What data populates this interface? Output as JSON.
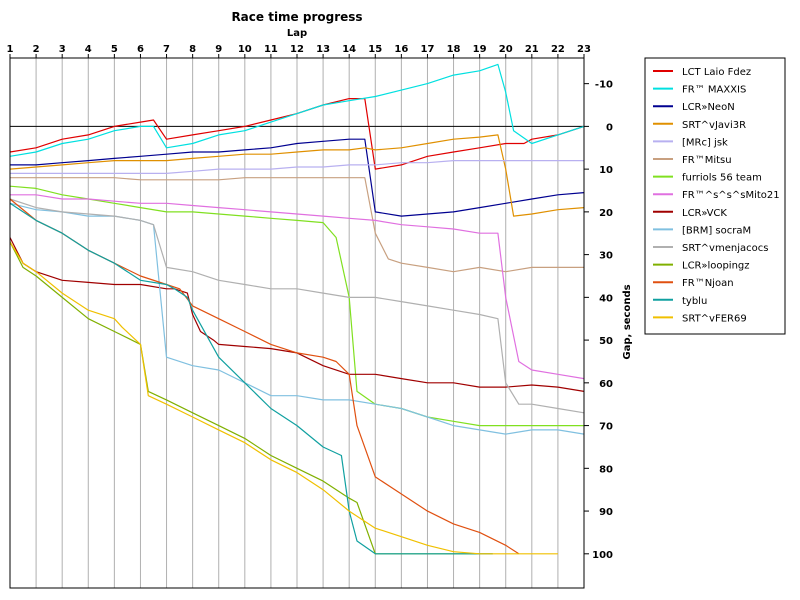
{
  "chart_data": {
    "type": "line",
    "title": "Race time progress",
    "xlabel": "Lap",
    "ylabel": "Gap, seconds",
    "x_ticks": [
      1,
      2,
      3,
      4,
      5,
      6,
      7,
      8,
      9,
      10,
      11,
      12,
      13,
      14,
      15,
      16,
      17,
      18,
      19,
      20,
      21,
      22,
      23
    ],
    "y_ticks": [
      -10,
      0,
      10,
      20,
      30,
      40,
      50,
      60,
      70,
      80,
      90,
      100
    ],
    "y_tick_labels": [
      "-10",
      "0",
      "10",
      "20",
      "30",
      "40",
      "50",
      "60",
      "70",
      "80",
      "90",
      "100"
    ],
    "xlim": [
      1,
      23
    ],
    "ylim": [
      -16,
      108
    ],
    "y_inverted": true,
    "legend_position": "right",
    "series": [
      {
        "name": "LCT Laio Fdez",
        "color": "#e00000",
        "x": [
          1,
          2,
          3,
          4,
          5,
          6,
          6.5,
          7,
          8,
          9,
          10,
          11,
          12,
          13,
          14,
          14.6,
          15,
          16,
          17,
          18,
          19,
          20,
          20.7,
          21,
          22,
          23
        ],
        "y": [
          6,
          5,
          3,
          2,
          0,
          -1,
          -1.5,
          3,
          2,
          1,
          0,
          -1.5,
          -3,
          -5,
          -6.5,
          -6.5,
          10,
          9,
          7,
          6,
          5,
          4,
          4,
          3,
          2,
          0
        ]
      },
      {
        "name": "FR™ MAXXIS",
        "color": "#00e0e0",
        "x": [
          1,
          2,
          3,
          4,
          5,
          6,
          6.5,
          7,
          8,
          9,
          10,
          11,
          12,
          13,
          14,
          15,
          16,
          17,
          18,
          19,
          19.7,
          20,
          20.3,
          21,
          22,
          23
        ],
        "y": [
          7,
          6,
          4,
          3,
          1,
          0,
          0,
          5,
          4,
          2,
          1,
          -1,
          -3,
          -5,
          -6,
          -7,
          -8.5,
          -10,
          -12,
          -13,
          -14.5,
          -8,
          1,
          4,
          2,
          0
        ]
      },
      {
        "name": "LCR»NeoN",
        "color": "#000090",
        "x": [
          1,
          2,
          3,
          4,
          5,
          6,
          7,
          8,
          9,
          10,
          11,
          12,
          13,
          14,
          14.6,
          15,
          16,
          17,
          18,
          19,
          20,
          21,
          22,
          23
        ],
        "y": [
          9,
          9,
          8.5,
          8,
          7.5,
          7,
          6.5,
          6,
          6,
          5.5,
          5,
          4,
          3.5,
          3,
          3,
          20,
          21,
          20.5,
          20,
          19,
          18,
          17,
          16,
          15.5
        ]
      },
      {
        "name": "SRT^vJavi3R",
        "color": "#e09000",
        "x": [
          1,
          2,
          3,
          4,
          5,
          6,
          7,
          8,
          9,
          10,
          11,
          12,
          13,
          14,
          14.6,
          15,
          16,
          17,
          18,
          19,
          19.7,
          20,
          20.3,
          21,
          22,
          23
        ],
        "y": [
          10,
          9.5,
          9,
          8.5,
          8,
          8,
          8,
          7.5,
          7,
          6.5,
          6.5,
          6,
          5.5,
          5.5,
          5,
          5.5,
          5,
          4,
          3,
          2.5,
          2,
          10,
          21,
          20.5,
          19.5,
          19
        ]
      },
      {
        "name": "[MRc] jsk",
        "color": "#b8b0f0",
        "x": [
          1,
          2,
          3,
          4,
          5,
          6,
          7,
          8,
          9,
          10,
          11,
          12,
          13,
          14,
          15,
          16,
          17,
          18,
          19,
          20,
          21,
          22,
          23
        ],
        "y": [
          11,
          11,
          11,
          11,
          11,
          11,
          11,
          10.5,
          10,
          10,
          10,
          9.5,
          9.5,
          9,
          9,
          8.5,
          8.5,
          8,
          8,
          8,
          8,
          8,
          8
        ]
      },
      {
        "name": "FR™Mitsu",
        "color": "#c8a080",
        "x": [
          1,
          2,
          3,
          4,
          5,
          6,
          7,
          8,
          9,
          10,
          11,
          12,
          13,
          14,
          14.6,
          15,
          15.5,
          16,
          17,
          18,
          19,
          20,
          21,
          22,
          23
        ],
        "y": [
          12,
          12,
          12,
          12,
          12,
          12.5,
          12.5,
          12.5,
          12.5,
          12,
          12,
          12,
          12,
          12,
          12,
          25,
          31,
          32,
          33,
          34,
          33,
          34,
          33,
          33,
          33
        ]
      },
      {
        "name": "furriols 56 team",
        "color": "#80e020",
        "x": [
          1,
          2,
          3,
          4,
          5,
          6,
          7,
          8,
          9,
          10,
          11,
          12,
          13,
          13.5,
          14,
          14.3,
          15,
          16,
          17,
          18,
          19,
          20,
          21,
          22,
          23
        ],
        "y": [
          14,
          14.5,
          16,
          17,
          18,
          19,
          20,
          20,
          20.5,
          21,
          21.5,
          22,
          22.5,
          26,
          40,
          62,
          65,
          66,
          68,
          69,
          70,
          70,
          70,
          70,
          70
        ]
      },
      {
        "name": "FR™^s^s^sMito21",
        "color": "#e070e0",
        "x": [
          1,
          2,
          3,
          4,
          5,
          6,
          7,
          8,
          9,
          10,
          11,
          12,
          13,
          14,
          15,
          16,
          17,
          18,
          19,
          19.7,
          20,
          20.5,
          21,
          22,
          23
        ],
        "y": [
          16,
          16,
          17,
          17,
          17.5,
          18,
          18,
          18.5,
          19,
          19.5,
          20,
          20.5,
          21,
          21.5,
          22,
          23,
          23.5,
          24,
          25,
          25,
          40,
          55,
          57,
          58,
          59
        ]
      },
      {
        "name": "LCR»VCK",
        "color": "#a00000",
        "x": [
          1,
          1.5,
          2,
          3,
          4,
          5,
          6,
          7,
          7.3,
          7.8,
          8,
          8.3,
          8.8,
          9,
          10,
          11,
          12,
          13,
          14,
          15,
          16,
          17,
          18,
          19,
          20,
          21,
          22,
          23
        ],
        "y": [
          26,
          32,
          34,
          36,
          36.5,
          37,
          37,
          38,
          38,
          39,
          44,
          48,
          50,
          51,
          51.5,
          52,
          53,
          56,
          58,
          58,
          59,
          60,
          60,
          61,
          61,
          60.5,
          61,
          62
        ]
      },
      {
        "name": "[BRM] socraM",
        "color": "#80c0e0",
        "x": [
          1,
          2,
          3,
          4,
          5,
          6,
          6.5,
          7,
          8,
          9,
          10,
          11,
          12,
          13,
          14,
          15,
          16,
          17,
          18,
          19,
          20,
          21,
          22,
          23
        ],
        "y": [
          18,
          19.5,
          20,
          21,
          21,
          22,
          23,
          54,
          56,
          57,
          60,
          63,
          63,
          64,
          64,
          65,
          66,
          68,
          70,
          71,
          72,
          71,
          71,
          72
        ]
      },
      {
        "name": "SRT^vmenjacocs",
        "color": "#b0b0b0",
        "x": [
          1,
          2,
          3,
          4,
          5,
          6,
          6.5,
          7,
          8,
          9,
          10,
          11,
          12,
          13,
          14,
          15,
          16,
          17,
          18,
          19,
          19.7,
          20,
          20.5,
          21,
          22,
          23
        ],
        "y": [
          17,
          19,
          20,
          20.5,
          21,
          22,
          23,
          33,
          34,
          36,
          37,
          38,
          38,
          39,
          40,
          40,
          41,
          42,
          43,
          44,
          45,
          60,
          65,
          65,
          66,
          67
        ]
      },
      {
        "name": "LCR»loopingz",
        "color": "#80b000",
        "x": [
          1,
          1.5,
          2,
          3,
          4,
          5,
          6,
          6.3,
          7,
          8,
          9,
          10,
          11,
          12,
          13,
          14,
          14.3,
          15,
          16,
          17,
          18,
          19,
          19.5
        ],
        "y": [
          27,
          33,
          35,
          40,
          45,
          48,
          51,
          62,
          64,
          67,
          70,
          73,
          77,
          80,
          83,
          87,
          88,
          100,
          100,
          100,
          100,
          100,
          100
        ]
      },
      {
        "name": "FR™Njoan",
        "color": "#e05010",
        "x": [
          1,
          2,
          3,
          4,
          5,
          6,
          7,
          7.5,
          8,
          9,
          10,
          11,
          12,
          13,
          13.5,
          14,
          14.3,
          15,
          16,
          17,
          18,
          19,
          20,
          20.5
        ],
        "y": [
          17,
          22,
          25,
          29,
          32,
          35,
          37,
          38,
          42,
          45,
          48,
          51,
          53,
          54,
          55,
          58,
          70,
          82,
          86,
          90,
          93,
          95,
          98,
          100
        ]
      },
      {
        "name": "tyblu",
        "color": "#10a0a0",
        "x": [
          1,
          2,
          3,
          4,
          5,
          6,
          7,
          7.3,
          7.8,
          8,
          9,
          10,
          11,
          12,
          13,
          13.7,
          14,
          14.3,
          15,
          16,
          17,
          18,
          19,
          19.5
        ],
        "y": [
          18,
          22,
          25,
          29,
          32,
          36,
          37,
          38,
          40,
          43,
          54,
          60,
          66,
          70,
          75,
          77,
          90,
          97,
          100,
          100,
          100,
          100,
          100,
          100
        ]
      },
      {
        "name": "SRT^vFER69",
        "color": "#f0c000",
        "x": [
          1,
          1.5,
          2,
          3,
          4,
          5,
          5.3,
          6,
          6.3,
          7,
          8,
          9,
          10,
          11,
          12,
          13,
          14,
          15,
          16,
          17,
          18,
          19,
          20,
          21,
          22
        ],
        "y": [
          27,
          32,
          34,
          39,
          43,
          45,
          47,
          51,
          63,
          65,
          68,
          71,
          74,
          78,
          81,
          85,
          90,
          94,
          96,
          98,
          99.5,
          100,
          100,
          100,
          100
        ]
      }
    ]
  }
}
